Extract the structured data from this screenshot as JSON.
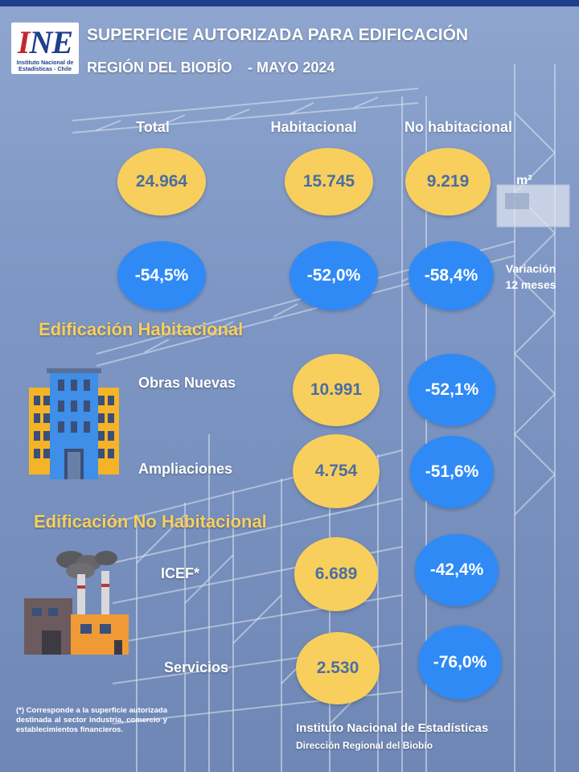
{
  "header": {
    "logo": {
      "mark_i": "I",
      "mark_ne": "NE",
      "caption": "Instituto Nacional de Estadísticas - Chile"
    },
    "title": "SUPERFICIE AUTORIZADA PARA EDIFICACIÓN",
    "region": "REGIÓN DEL BIOBÍO",
    "period": "- MAYO 2024"
  },
  "summary": {
    "columns": [
      "Total",
      "Habitacional",
      "No habitacional"
    ],
    "values": [
      "24.964",
      "15.745",
      "9.219"
    ],
    "unit": "m²",
    "variations": [
      "-54,5%",
      "-52,0%",
      "-58,4%"
    ],
    "variation_label_line1": "Variación",
    "variation_label_line2": "12 meses"
  },
  "residential": {
    "heading": "Edificación Habitacional",
    "icon": "apartment-building-icon",
    "rows": [
      {
        "label": "Obras Nuevas",
        "value": "10.991",
        "variation": "-52,1%"
      },
      {
        "label": "Ampliaciones",
        "value": "4.754",
        "variation": "-51,6%"
      }
    ]
  },
  "non_residential": {
    "heading": "Edificación No Habitacional",
    "icon": "factory-icon",
    "rows": [
      {
        "label": "ICEF*",
        "value": "6.689",
        "variation": "-42,4%"
      },
      {
        "label": "Servicios",
        "value": "2.530",
        "variation": "-76,0%"
      }
    ]
  },
  "footnote": "(*) Corresponde a la superficie autorizada destinada al sector industria, comercio y establecimientos financieros.",
  "footer": {
    "institution": "Instituto Nacional de Estadísticas",
    "office": "Dirección Regional del Biobío"
  },
  "colors": {
    "value_circle": "#f8cf5c",
    "variation_circle": "#2f8af5",
    "heading": "#f8cf5c",
    "brand_blue": "#1f3f8c",
    "brand_red": "#c4262e"
  }
}
